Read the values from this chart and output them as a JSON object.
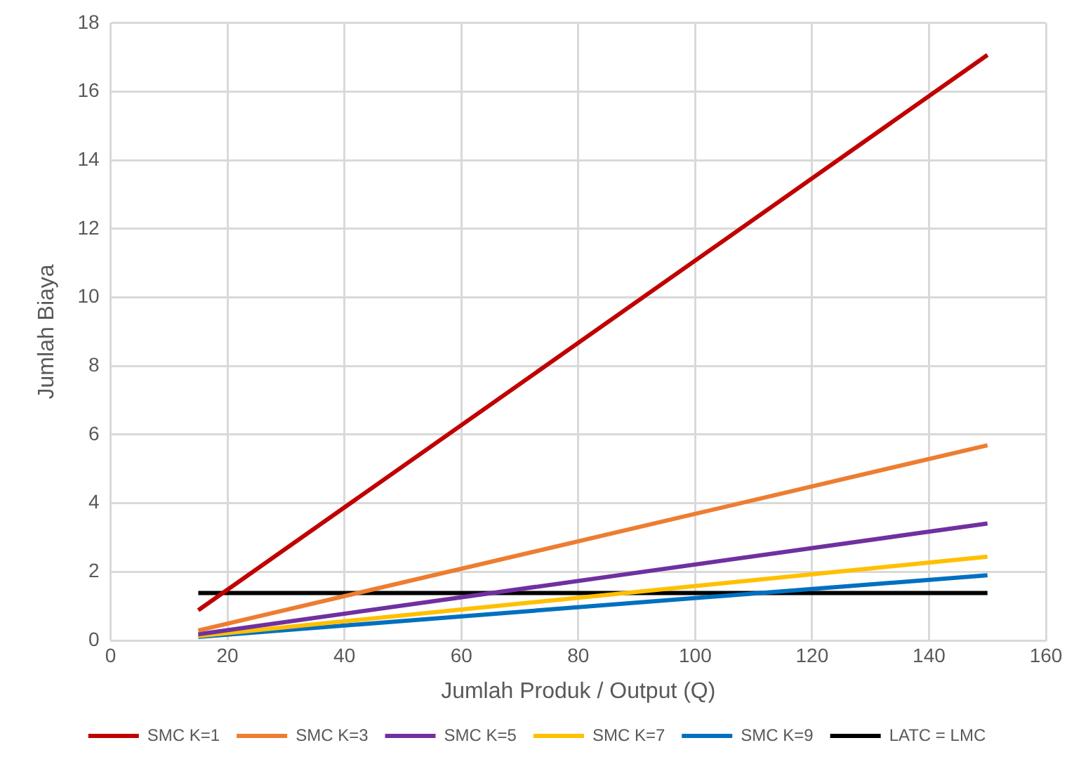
{
  "chart_data": {
    "type": "line",
    "xlabel": "Jumlah Produk / Output (Q)",
    "ylabel": "Jumlah Biaya",
    "x": [
      15,
      150
    ],
    "series": [
      {
        "name": "SMC K=1",
        "color": "#c00000",
        "values": [
          0.88,
          17.07
        ]
      },
      {
        "name": "SMC K=3",
        "color": "#ed7d31",
        "values": [
          0.29,
          5.69
        ]
      },
      {
        "name": "SMC K=5",
        "color": "#7030a0",
        "values": [
          0.18,
          3.41
        ]
      },
      {
        "name": "SMC K=7",
        "color": "#ffc000",
        "values": [
          0.13,
          2.44
        ]
      },
      {
        "name": "SMC K=9",
        "color": "#0070c0",
        "values": [
          0.1,
          1.9
        ]
      },
      {
        "name": "LATC = LMC",
        "color": "#000000",
        "values": [
          1.38,
          1.38
        ]
      }
    ],
    "xlim": [
      0,
      160
    ],
    "xticks": [
      0,
      20,
      40,
      60,
      80,
      100,
      120,
      140,
      160
    ],
    "ylim": [
      0,
      18
    ],
    "yticks": [
      0,
      2,
      4,
      6,
      8,
      10,
      12,
      14,
      16,
      18
    ],
    "grid": true,
    "legend": "bottom",
    "marker": "none",
    "line_style": "solid"
  }
}
